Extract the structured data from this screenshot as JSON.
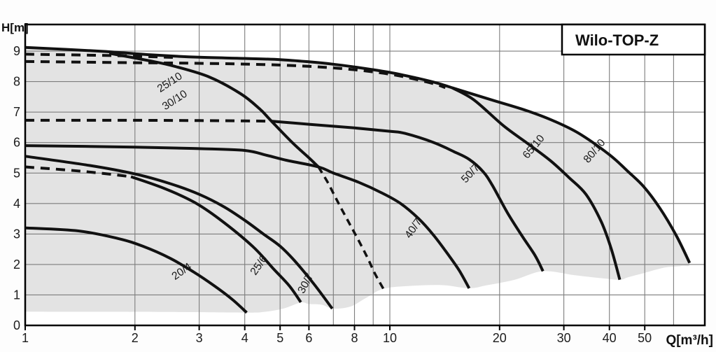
{
  "title": "Wilo-TOP-Z",
  "chart_data": {
    "type": "line",
    "x_scale": "log",
    "xlabel": "Q[m³/h]",
    "ylabel": "H[m]",
    "xlim": [
      1,
      73
    ],
    "ylim": [
      0,
      9.9
    ],
    "grid": "on",
    "legend_position": "none",
    "x_ticks": [
      {
        "v": 1,
        "label": "1"
      },
      {
        "v": 2,
        "label": "2"
      },
      {
        "v": 3,
        "label": "3"
      },
      {
        "v": 4,
        "label": "4"
      },
      {
        "v": 5,
        "label": "5"
      },
      {
        "v": 6,
        "label": "6"
      },
      {
        "v": 8,
        "label": "8"
      },
      {
        "v": 10,
        "label": "10"
      },
      {
        "v": 20,
        "label": "20"
      },
      {
        "v": 30,
        "label": "30"
      },
      {
        "v": 40,
        "label": "40"
      },
      {
        "v": 50,
        "label": "50"
      }
    ],
    "x_gridlines": [
      2,
      3,
      4,
      5,
      6,
      7,
      8,
      9,
      10,
      20,
      30,
      40,
      50,
      60
    ],
    "y_ticks": [
      0,
      1,
      2,
      3,
      4,
      5,
      6,
      7,
      8,
      9
    ],
    "colors": {
      "curve": "#111111",
      "grid": "#7d7d7d",
      "region": "#e3e3e3",
      "border": "#000000",
      "background": "#fdfdfd",
      "plot_background": "#ffffff"
    },
    "region": [
      [
        1,
        9.12
      ],
      [
        2.2,
        8.88
      ],
      [
        4,
        8.76
      ],
      [
        6,
        8.65
      ],
      [
        8,
        8.48
      ],
      [
        10,
        8.3
      ],
      [
        13.5,
        7.95
      ],
      [
        14.8,
        7.8
      ],
      [
        19,
        7.4
      ],
      [
        23.7,
        7.05
      ],
      [
        28,
        6.72
      ],
      [
        33,
        6.3
      ],
      [
        40,
        5.6
      ],
      [
        49.7,
        4.55
      ],
      [
        61,
        2.95
      ],
      [
        66.4,
        2.05
      ],
      [
        63,
        1.95
      ],
      [
        56.8,
        1.9
      ],
      [
        49.8,
        1.72
      ],
      [
        45,
        1.58
      ],
      [
        42.7,
        1.5
      ],
      [
        38,
        1.55
      ],
      [
        32,
        1.65
      ],
      [
        26.3,
        1.78
      ],
      [
        22,
        1.5
      ],
      [
        18.5,
        1.32
      ],
      [
        16.5,
        1.22
      ],
      [
        14,
        1.32
      ],
      [
        11.5,
        1.3
      ],
      [
        9.6,
        1.2
      ],
      [
        8.6,
        0.9
      ],
      [
        7.8,
        0.62
      ],
      [
        7.0,
        0.55
      ],
      [
        6.5,
        0.68
      ],
      [
        6.0,
        0.7
      ],
      [
        5.7,
        0.75
      ],
      [
        5.1,
        0.55
      ],
      [
        4.5,
        0.44
      ],
      [
        4.05,
        0.42
      ],
      [
        2.5,
        0.44
      ],
      [
        1,
        0.45
      ]
    ],
    "curves": [
      {
        "name": "envelope-top",
        "style": "solid",
        "points": [
          [
            1,
            9.12
          ],
          [
            1.6,
            9.0
          ],
          [
            2.2,
            8.88
          ],
          [
            3,
            8.8
          ],
          [
            4,
            8.76
          ],
          [
            5,
            8.72
          ],
          [
            6,
            8.65
          ],
          [
            7,
            8.57
          ],
          [
            8,
            8.48
          ],
          [
            10,
            8.3
          ],
          [
            12,
            8.1
          ],
          [
            13.5,
            7.95
          ],
          [
            14.8,
            7.8
          ]
        ]
      },
      {
        "name": "80-10",
        "style": "solid",
        "points": [
          [
            14.8,
            7.8
          ],
          [
            19,
            7.4
          ],
          [
            23.7,
            7.05
          ],
          [
            28,
            6.72
          ],
          [
            33,
            6.3
          ],
          [
            40,
            5.6
          ],
          [
            45,
            5.05
          ],
          [
            49.7,
            4.55
          ],
          [
            55,
            3.85
          ],
          [
            61,
            2.95
          ],
          [
            66.4,
            2.05
          ]
        ]
      },
      {
        "name": "65-10",
        "style": "solid",
        "points": [
          [
            14.8,
            7.8
          ],
          [
            17,
            7.4
          ],
          [
            20.5,
            6.55
          ],
          [
            24,
            5.95
          ],
          [
            27.6,
            5.4
          ],
          [
            31,
            4.85
          ],
          [
            34.5,
            4.3
          ],
          [
            38,
            3.4
          ],
          [
            40.5,
            2.5
          ],
          [
            42.7,
            1.5
          ]
        ]
      },
      {
        "name": "25-10-30-10",
        "style": "solid",
        "points": [
          [
            1.7,
            8.93
          ],
          [
            2.2,
            8.68
          ],
          [
            2.57,
            8.5
          ],
          [
            3.2,
            8.15
          ],
          [
            3.9,
            7.6
          ],
          [
            4.4,
            7.1
          ],
          [
            4.72,
            6.72
          ],
          [
            5.4,
            6.0
          ],
          [
            6.0,
            5.5
          ],
          [
            6.37,
            5.2
          ]
        ]
      },
      {
        "name": "25-10-30-10-ext",
        "style": "dashed-fine",
        "points": [
          [
            6.37,
            5.2
          ],
          [
            6.75,
            4.7
          ],
          [
            7.2,
            4.05
          ],
          [
            7.7,
            3.4
          ],
          [
            8.2,
            2.8
          ],
          [
            8.7,
            2.2
          ],
          [
            9.1,
            1.7
          ],
          [
            9.6,
            1.2
          ]
        ]
      },
      {
        "name": "top-dashed-1",
        "style": "dashed",
        "points": [
          [
            1,
            8.9
          ],
          [
            1.8,
            8.85
          ],
          [
            2.6,
            8.79
          ]
        ]
      },
      {
        "name": "top-dashed-2",
        "style": "dashed",
        "points": [
          [
            1,
            8.66
          ],
          [
            2,
            8.62
          ],
          [
            3,
            8.6
          ],
          [
            4.5,
            8.56
          ],
          [
            6,
            8.5
          ],
          [
            7.5,
            8.42
          ],
          [
            9,
            8.32
          ],
          [
            10.5,
            8.2
          ],
          [
            12,
            8.05
          ],
          [
            13.3,
            7.92
          ],
          [
            14.2,
            7.8
          ]
        ]
      },
      {
        "name": "flat-dashed-7m",
        "style": "dashed",
        "points": [
          [
            1,
            6.73
          ],
          [
            2,
            6.73
          ],
          [
            3,
            6.72
          ],
          [
            4,
            6.71
          ],
          [
            4.72,
            6.7
          ]
        ]
      },
      {
        "name": "50-7",
        "style": "solid",
        "points": [
          [
            4.75,
            6.7
          ],
          [
            6,
            6.6
          ],
          [
            8,
            6.48
          ],
          [
            10,
            6.37
          ],
          [
            11,
            6.3
          ],
          [
            13.2,
            6.0
          ],
          [
            15,
            5.7
          ],
          [
            16.5,
            5.45
          ],
          [
            18,
            5.05
          ],
          [
            19.1,
            4.6
          ],
          [
            21,
            3.7
          ],
          [
            23,
            2.95
          ],
          [
            25,
            2.3
          ],
          [
            26.3,
            1.78
          ]
        ]
      },
      {
        "name": "40-7",
        "style": "solid",
        "points": [
          [
            1,
            5.9
          ],
          [
            2,
            5.85
          ],
          [
            3,
            5.8
          ],
          [
            4,
            5.74
          ],
          [
            4.6,
            5.58
          ],
          [
            5.2,
            5.42
          ],
          [
            6.37,
            5.2
          ],
          [
            7,
            5.0
          ],
          [
            8.2,
            4.7
          ],
          [
            9.5,
            4.35
          ],
          [
            10.7,
            4.0
          ],
          [
            12,
            3.5
          ],
          [
            13.2,
            2.95
          ],
          [
            14.5,
            2.3
          ],
          [
            15.5,
            1.8
          ],
          [
            16.5,
            1.22
          ]
        ]
      },
      {
        "name": "30-7",
        "style": "solid",
        "points": [
          [
            1,
            5.55
          ],
          [
            1.5,
            5.25
          ],
          [
            2,
            4.97
          ],
          [
            2.5,
            4.65
          ],
          [
            3,
            4.3
          ],
          [
            3.5,
            3.9
          ],
          [
            4,
            3.45
          ],
          [
            4.5,
            3.0
          ],
          [
            5,
            2.6
          ],
          [
            5.5,
            2.1
          ],
          [
            6.2,
            1.35
          ],
          [
            6.95,
            0.55
          ]
        ]
      },
      {
        "name": "25-6-dashed-start",
        "style": "dashed",
        "points": [
          [
            1,
            5.2
          ],
          [
            1.3,
            5.1
          ],
          [
            1.6,
            5.0
          ],
          [
            1.95,
            4.88
          ]
        ]
      },
      {
        "name": "25-6",
        "style": "solid",
        "points": [
          [
            1.95,
            4.88
          ],
          [
            2.4,
            4.5
          ],
          [
            2.9,
            4.05
          ],
          [
            3.4,
            3.5
          ],
          [
            4.2,
            2.6
          ],
          [
            4.8,
            1.85
          ],
          [
            5.3,
            1.3
          ],
          [
            5.7,
            0.76
          ]
        ]
      },
      {
        "name": "20-4",
        "style": "solid",
        "points": [
          [
            1,
            3.2
          ],
          [
            1.4,
            3.1
          ],
          [
            1.8,
            2.85
          ],
          [
            2.1,
            2.6
          ],
          [
            2.5,
            2.2
          ],
          [
            2.9,
            1.75
          ],
          [
            3.3,
            1.3
          ],
          [
            3.7,
            0.85
          ],
          [
            4.05,
            0.42
          ]
        ]
      }
    ],
    "labels": [
      {
        "text": "25/10",
        "q": 2.52,
        "h": 7.88,
        "angle": -33
      },
      {
        "text": "30/10",
        "q": 2.6,
        "h": 7.3,
        "angle": -33
      },
      {
        "text": "65/10",
        "q": 25.2,
        "h": 5.79,
        "angle": -50
      },
      {
        "text": "80/10",
        "q": 37.0,
        "h": 5.65,
        "angle": -50
      },
      {
        "text": "50/7",
        "q": 16.9,
        "h": 4.91,
        "angle": -47
      },
      {
        "text": "40/7",
        "q": 11.8,
        "h": 3.12,
        "angle": -55
      },
      {
        "text": "25/6",
        "q": 4.45,
        "h": 1.91,
        "angle": -55
      },
      {
        "text": "30/7",
        "q": 5.99,
        "h": 1.33,
        "angle": -62
      },
      {
        "text": "20/4",
        "q": 2.72,
        "h": 1.68,
        "angle": -35
      }
    ]
  }
}
